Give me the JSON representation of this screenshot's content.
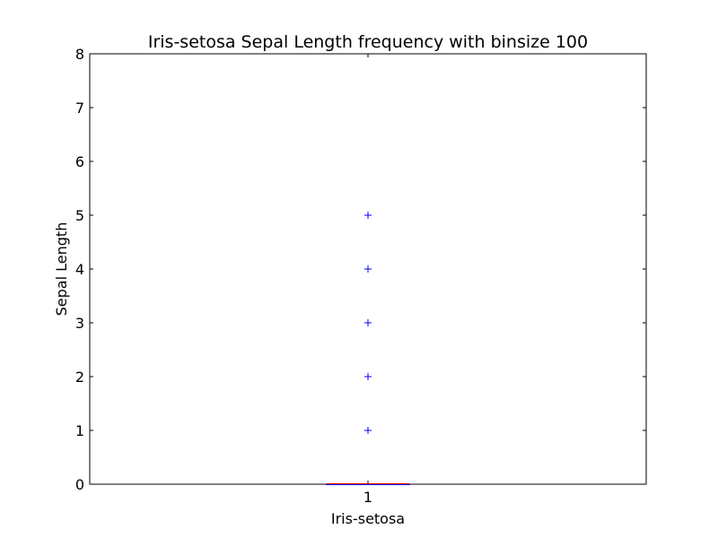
{
  "chart_data": {
    "type": "boxplot",
    "title": "Iris-setosa Sepal Length frequency with binsize 100",
    "xlabel": "Iris-setosa",
    "ylabel": "Sepal Length",
    "ylim": [
      0,
      8
    ],
    "yticks": [
      "0",
      "1",
      "2",
      "3",
      "4",
      "5",
      "6",
      "7",
      "8"
    ],
    "xticks": [
      "1"
    ],
    "grid": false,
    "series": [
      {
        "position": 1,
        "q1": 0,
        "median": 0,
        "q3": 0,
        "whisker_low": 0,
        "whisker_high": 0,
        "fliers": [
          1,
          2,
          3,
          4,
          5
        ]
      }
    ],
    "colors": {
      "box": "#0000ff",
      "median": "#ff0000",
      "flier": "#0000ff"
    }
  }
}
